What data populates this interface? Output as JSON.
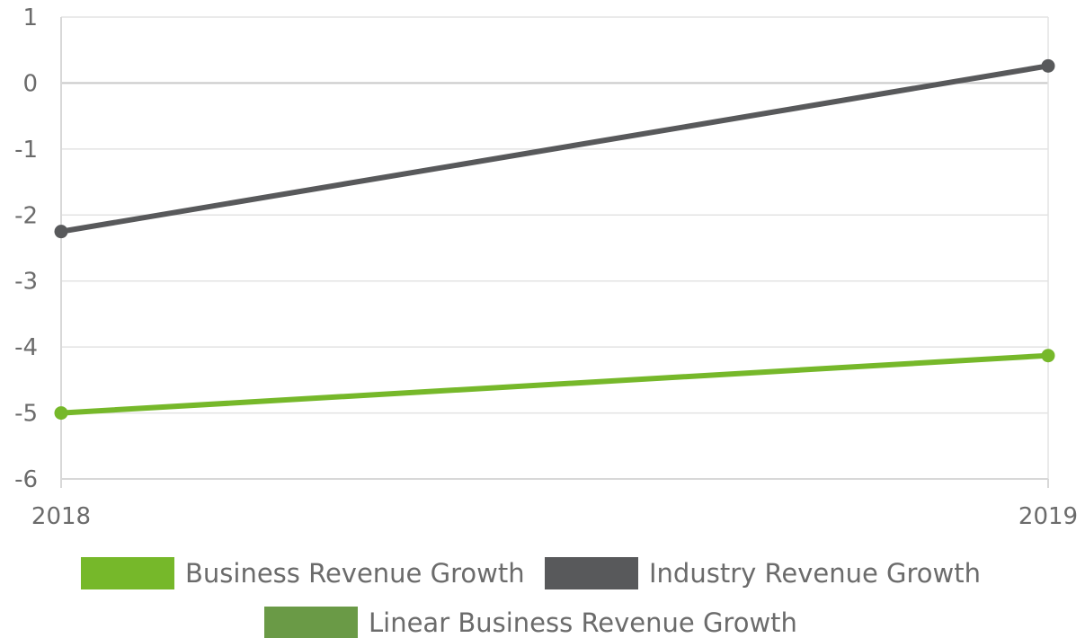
{
  "chart_data": {
    "type": "line",
    "x": [
      "2018",
      "2019"
    ],
    "series": [
      {
        "name": "Business Revenue Growth",
        "values": [
          -5.0,
          -4.13
        ],
        "color": "#76b82a"
      },
      {
        "name": "Industry Revenue Growth",
        "values": [
          -2.25,
          0.26
        ],
        "color": "#58595b"
      }
    ],
    "legend": [
      {
        "name": "Business Revenue Growth",
        "color": "#76b82a"
      },
      {
        "name": "Industry Revenue Growth",
        "color": "#58595b"
      },
      {
        "name": "Linear Business Revenue Growth",
        "color": "#6a9a46"
      }
    ],
    "title": "",
    "xlabel": "",
    "ylabel": "",
    "ylim": [
      -6,
      1
    ],
    "yticks": [
      "1",
      "0",
      "-1",
      "-2",
      "-3",
      "-4",
      "-5",
      "-6"
    ],
    "xticks": [
      "2018",
      "2019"
    ],
    "grid": true,
    "legend_position": "bottom"
  }
}
